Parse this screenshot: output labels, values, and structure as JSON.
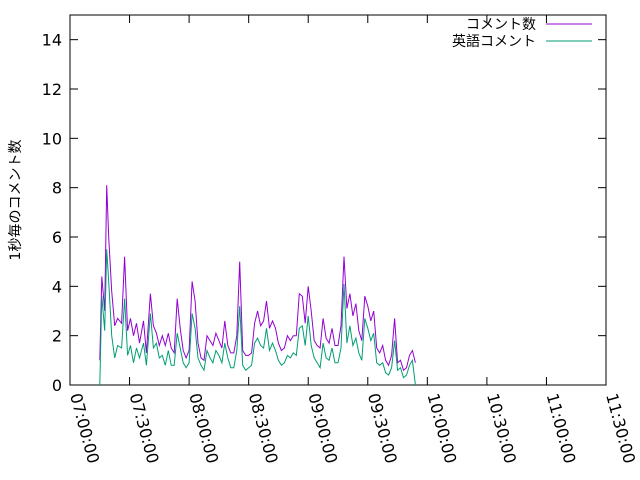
{
  "chart_data": {
    "type": "line",
    "ylabel": "1秒毎のコメント数",
    "ylim": [
      0,
      15
    ],
    "yticks": [
      0,
      2,
      4,
      6,
      8,
      10,
      12,
      14
    ],
    "xlim": [
      "07:00:00",
      "11:30:00"
    ],
    "xticks": [
      "07:00:00",
      "07:30:00",
      "08:00:00",
      "08:30:00",
      "09:00:00",
      "09:30:00",
      "10:00:00",
      "10:30:00",
      "11:00:00",
      "11:30:00"
    ],
    "legend_position": "top-right",
    "grid": false,
    "series": [
      {
        "name": "コメント数",
        "color": "#9400d3",
        "points": [
          [
            "07:15:00",
            1.0
          ],
          [
            "07:16:00",
            4.4
          ],
          [
            "07:17:30",
            3.0
          ],
          [
            "07:18:30",
            8.1
          ],
          [
            "07:19:30",
            6.0
          ],
          [
            "07:21:00",
            3.8
          ],
          [
            "07:22:30",
            2.4
          ],
          [
            "07:24:00",
            2.7
          ],
          [
            "07:26:00",
            2.5
          ],
          [
            "07:27:30",
            5.2
          ],
          [
            "07:29:00",
            2.2
          ],
          [
            "07:30:30",
            2.7
          ],
          [
            "07:32:00",
            2.0
          ],
          [
            "07:33:30",
            2.5
          ],
          [
            "07:35:00",
            1.7
          ],
          [
            "07:37:00",
            2.6
          ],
          [
            "07:38:30",
            1.3
          ],
          [
            "07:40:30",
            3.7
          ],
          [
            "07:42:00",
            2.4
          ],
          [
            "07:43:30",
            2.1
          ],
          [
            "07:45:00",
            1.6
          ],
          [
            "07:46:30",
            2.0
          ],
          [
            "07:48:00",
            1.6
          ],
          [
            "07:49:30",
            2.1
          ],
          [
            "07:51:00",
            1.5
          ],
          [
            "07:52:30",
            1.3
          ],
          [
            "07:54:00",
            3.5
          ],
          [
            "07:55:30",
            2.3
          ],
          [
            "07:57:00",
            1.4
          ],
          [
            "07:58:30",
            1.1
          ],
          [
            "08:00:00",
            1.4
          ],
          [
            "08:01:30",
            4.2
          ],
          [
            "08:03:00",
            3.4
          ],
          [
            "08:04:30",
            1.7
          ],
          [
            "08:06:00",
            1.1
          ],
          [
            "08:07:30",
            1.0
          ],
          [
            "08:09:00",
            2.0
          ],
          [
            "08:10:30",
            1.8
          ],
          [
            "08:12:00",
            1.6
          ],
          [
            "08:13:30",
            2.1
          ],
          [
            "08:15:00",
            1.8
          ],
          [
            "08:16:30",
            1.5
          ],
          [
            "08:18:00",
            2.6
          ],
          [
            "08:19:30",
            1.6
          ],
          [
            "08:21:00",
            1.3
          ],
          [
            "08:22:30",
            1.3
          ],
          [
            "08:24:00",
            2.0
          ],
          [
            "08:25:30",
            5.0
          ],
          [
            "08:27:00",
            1.4
          ],
          [
            "08:28:30",
            1.2
          ],
          [
            "08:30:00",
            1.2
          ],
          [
            "08:31:30",
            1.3
          ],
          [
            "08:33:00",
            2.5
          ],
          [
            "08:34:30",
            3.0
          ],
          [
            "08:36:00",
            2.4
          ],
          [
            "08:37:30",
            2.6
          ],
          [
            "08:39:00",
            3.4
          ],
          [
            "08:40:30",
            2.3
          ],
          [
            "08:42:00",
            2.6
          ],
          [
            "08:43:30",
            2.3
          ],
          [
            "08:45:00",
            1.7
          ],
          [
            "08:46:30",
            1.4
          ],
          [
            "08:48:00",
            1.5
          ],
          [
            "08:49:30",
            2.0
          ],
          [
            "08:51:00",
            1.8
          ],
          [
            "08:52:30",
            2.0
          ],
          [
            "08:54:00",
            2.0
          ],
          [
            "08:55:30",
            3.7
          ],
          [
            "08:57:00",
            3.6
          ],
          [
            "08:58:30",
            2.5
          ],
          [
            "09:00:00",
            4.0
          ],
          [
            "09:01:30",
            3.0
          ],
          [
            "09:03:00",
            1.8
          ],
          [
            "09:04:30",
            1.6
          ],
          [
            "09:06:00",
            1.5
          ],
          [
            "09:07:30",
            2.7
          ],
          [
            "09:09:00",
            1.9
          ],
          [
            "09:10:30",
            1.7
          ],
          [
            "09:12:00",
            2.3
          ],
          [
            "09:13:30",
            1.6
          ],
          [
            "09:15:00",
            1.6
          ],
          [
            "09:16:30",
            2.4
          ],
          [
            "09:18:00",
            5.2
          ],
          [
            "09:19:30",
            3.1
          ],
          [
            "09:21:00",
            3.7
          ],
          [
            "09:22:30",
            2.8
          ],
          [
            "09:24:00",
            3.3
          ],
          [
            "09:25:30",
            2.2
          ],
          [
            "09:27:00",
            1.8
          ],
          [
            "09:28:30",
            3.6
          ],
          [
            "09:30:00",
            3.2
          ],
          [
            "09:31:30",
            2.6
          ],
          [
            "09:33:00",
            3.0
          ],
          [
            "09:34:30",
            1.5
          ],
          [
            "09:36:00",
            1.3
          ],
          [
            "09:37:30",
            1.6
          ],
          [
            "09:39:00",
            1.0
          ],
          [
            "09:40:30",
            0.8
          ],
          [
            "09:42:00",
            1.2
          ],
          [
            "09:43:30",
            2.7
          ],
          [
            "09:45:00",
            0.9
          ],
          [
            "09:46:30",
            1.0
          ],
          [
            "09:48:00",
            0.6
          ],
          [
            "09:49:30",
            0.7
          ],
          [
            "09:51:00",
            1.2
          ],
          [
            "09:52:30",
            1.4
          ],
          [
            "09:54:00",
            0.9
          ]
        ]
      },
      {
        "name": "英語コメント",
        "color": "#009e73",
        "points": [
          [
            "07:15:00",
            0.0
          ],
          [
            "07:16:00",
            3.6
          ],
          [
            "07:17:30",
            2.2
          ],
          [
            "07:18:30",
            5.5
          ],
          [
            "07:19:30",
            4.2
          ],
          [
            "07:21:00",
            2.0
          ],
          [
            "07:22:30",
            1.1
          ],
          [
            "07:24:00",
            1.6
          ],
          [
            "07:26:00",
            1.5
          ],
          [
            "07:27:30",
            3.5
          ],
          [
            "07:29:00",
            1.2
          ],
          [
            "07:30:30",
            1.6
          ],
          [
            "07:32:00",
            0.9
          ],
          [
            "07:33:30",
            1.5
          ],
          [
            "07:35:00",
            1.1
          ],
          [
            "07:37:00",
            1.7
          ],
          [
            "07:38:30",
            0.8
          ],
          [
            "07:40:30",
            2.9
          ],
          [
            "07:42:00",
            1.5
          ],
          [
            "07:43:30",
            1.7
          ],
          [
            "07:45:00",
            1.1
          ],
          [
            "07:46:30",
            1.2
          ],
          [
            "07:48:00",
            0.8
          ],
          [
            "07:49:30",
            1.4
          ],
          [
            "07:51:00",
            0.8
          ],
          [
            "07:52:30",
            0.8
          ],
          [
            "07:54:00",
            2.1
          ],
          [
            "07:55:30",
            1.5
          ],
          [
            "07:57:00",
            0.9
          ],
          [
            "07:58:30",
            0.7
          ],
          [
            "08:00:00",
            0.9
          ],
          [
            "08:01:30",
            2.9
          ],
          [
            "08:03:00",
            2.3
          ],
          [
            "08:04:30",
            1.1
          ],
          [
            "08:06:00",
            0.8
          ],
          [
            "08:07:30",
            0.6
          ],
          [
            "08:09:00",
            1.4
          ],
          [
            "08:10:30",
            1.1
          ],
          [
            "08:12:00",
            0.9
          ],
          [
            "08:13:30",
            1.4
          ],
          [
            "08:15:00",
            1.2
          ],
          [
            "08:16:30",
            0.9
          ],
          [
            "08:18:00",
            1.7
          ],
          [
            "08:19:30",
            1.1
          ],
          [
            "08:21:00",
            0.7
          ],
          [
            "08:22:30",
            0.7
          ],
          [
            "08:24:00",
            1.4
          ],
          [
            "08:25:30",
            3.2
          ],
          [
            "08:27:00",
            0.8
          ],
          [
            "08:28:30",
            0.6
          ],
          [
            "08:30:00",
            0.7
          ],
          [
            "08:31:30",
            0.8
          ],
          [
            "08:33:00",
            1.7
          ],
          [
            "08:34:30",
            1.9
          ],
          [
            "08:36:00",
            1.6
          ],
          [
            "08:37:30",
            1.5
          ],
          [
            "08:39:00",
            2.3
          ],
          [
            "08:40:30",
            1.4
          ],
          [
            "08:42:00",
            1.7
          ],
          [
            "08:43:30",
            1.4
          ],
          [
            "08:45:00",
            1.0
          ],
          [
            "08:46:30",
            0.8
          ],
          [
            "08:48:00",
            0.9
          ],
          [
            "08:49:30",
            1.2
          ],
          [
            "08:51:00",
            1.1
          ],
          [
            "08:52:30",
            1.3
          ],
          [
            "08:54:00",
            1.2
          ],
          [
            "08:55:30",
            2.3
          ],
          [
            "08:57:00",
            2.4
          ],
          [
            "08:58:30",
            1.6
          ],
          [
            "09:00:00",
            2.8
          ],
          [
            "09:01:30",
            1.6
          ],
          [
            "09:03:00",
            1.1
          ],
          [
            "09:04:30",
            0.9
          ],
          [
            "09:06:00",
            0.7
          ],
          [
            "09:07:30",
            1.7
          ],
          [
            "09:09:00",
            1.1
          ],
          [
            "09:10:30",
            1.0
          ],
          [
            "09:12:00",
            1.5
          ],
          [
            "09:13:30",
            0.9
          ],
          [
            "09:15:00",
            0.9
          ],
          [
            "09:16:30",
            1.5
          ],
          [
            "09:18:00",
            4.1
          ],
          [
            "09:19:30",
            1.7
          ],
          [
            "09:21:00",
            2.4
          ],
          [
            "09:22:30",
            1.6
          ],
          [
            "09:24:00",
            1.9
          ],
          [
            "09:25:30",
            1.3
          ],
          [
            "09:27:00",
            1.0
          ],
          [
            "09:28:30",
            2.7
          ],
          [
            "09:30:00",
            2.3
          ],
          [
            "09:31:30",
            1.8
          ],
          [
            "09:33:00",
            2.1
          ],
          [
            "09:34:30",
            0.9
          ],
          [
            "09:36:00",
            0.8
          ],
          [
            "09:37:30",
            0.9
          ],
          [
            "09:39:00",
            0.5
          ],
          [
            "09:40:30",
            0.4
          ],
          [
            "09:42:00",
            0.7
          ],
          [
            "09:43:30",
            1.8
          ],
          [
            "09:45:00",
            0.6
          ],
          [
            "09:46:30",
            0.7
          ],
          [
            "09:48:00",
            0.3
          ],
          [
            "09:49:30",
            0.4
          ],
          [
            "09:51:00",
            0.8
          ],
          [
            "09:52:30",
            1.0
          ],
          [
            "09:54:00",
            0.0
          ]
        ]
      }
    ]
  }
}
